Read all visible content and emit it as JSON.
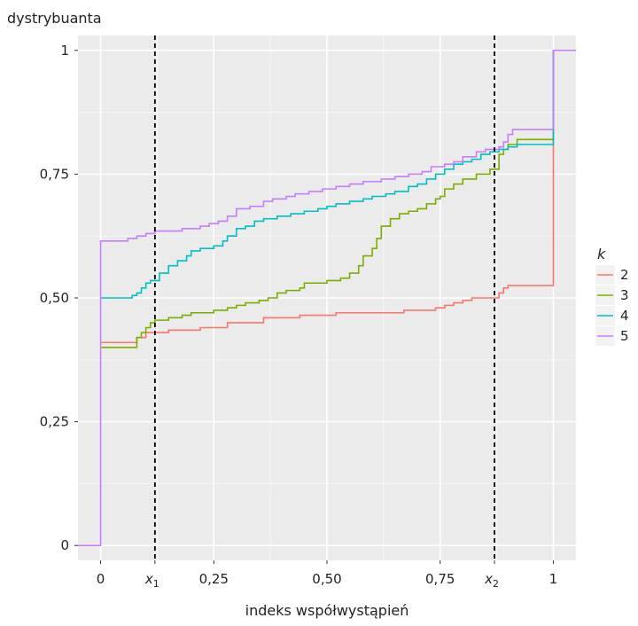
{
  "chart_data": {
    "type": "line",
    "step": true,
    "ylabel": "dystrybuanta",
    "xlabel": "indeks współwystąpień",
    "xlim": [
      -0.05,
      1.05
    ],
    "ylim": [
      -0.03,
      1.03
    ],
    "x_ticks": [
      {
        "value": 0,
        "label": "0"
      },
      {
        "value": 0.25,
        "label": "0,25"
      },
      {
        "value": 0.5,
        "label": "0,50"
      },
      {
        "value": 0.75,
        "label": "0,75"
      },
      {
        "value": 1,
        "label": "1"
      }
    ],
    "y_ticks": [
      {
        "value": 0,
        "label": "0"
      },
      {
        "value": 0.25,
        "label": "0,25"
      },
      {
        "value": 0.5,
        "label": "0,50"
      },
      {
        "value": 0.75,
        "label": "0,75"
      },
      {
        "value": 1,
        "label": "1"
      }
    ],
    "vlines": [
      {
        "x": 0.12,
        "label": "x",
        "subscript": "1"
      },
      {
        "x": 0.87,
        "label": "x",
        "subscript": "2"
      }
    ],
    "grid": true,
    "legend": {
      "title": "k",
      "position": "right"
    },
    "series": [
      {
        "name": "2",
        "color": "#F8766D",
        "points": [
          [
            0.0,
            0.41
          ],
          [
            0.07,
            0.41
          ],
          [
            0.08,
            0.42
          ],
          [
            0.09,
            0.42
          ],
          [
            0.1,
            0.43
          ],
          [
            0.14,
            0.43
          ],
          [
            0.15,
            0.435
          ],
          [
            0.2,
            0.435
          ],
          [
            0.22,
            0.44
          ],
          [
            0.27,
            0.44
          ],
          [
            0.28,
            0.45
          ],
          [
            0.35,
            0.45
          ],
          [
            0.36,
            0.46
          ],
          [
            0.42,
            0.46
          ],
          [
            0.44,
            0.465
          ],
          [
            0.5,
            0.465
          ],
          [
            0.52,
            0.47
          ],
          [
            0.65,
            0.47
          ],
          [
            0.67,
            0.475
          ],
          [
            0.73,
            0.475
          ],
          [
            0.74,
            0.48
          ],
          [
            0.76,
            0.485
          ],
          [
            0.78,
            0.49
          ],
          [
            0.8,
            0.495
          ],
          [
            0.82,
            0.5
          ],
          [
            0.87,
            0.5
          ],
          [
            0.88,
            0.51
          ],
          [
            0.89,
            0.52
          ],
          [
            0.9,
            0.525
          ],
          [
            1.0,
            0.525
          ],
          [
            1.0,
            1.0
          ]
        ]
      },
      {
        "name": "3",
        "color": "#7CAE00",
        "points": [
          [
            0.0,
            0.4
          ],
          [
            0.07,
            0.4
          ],
          [
            0.08,
            0.42
          ],
          [
            0.09,
            0.43
          ],
          [
            0.1,
            0.44
          ],
          [
            0.11,
            0.45
          ],
          [
            0.12,
            0.455
          ],
          [
            0.15,
            0.46
          ],
          [
            0.18,
            0.465
          ],
          [
            0.2,
            0.47
          ],
          [
            0.25,
            0.475
          ],
          [
            0.28,
            0.48
          ],
          [
            0.3,
            0.485
          ],
          [
            0.32,
            0.49
          ],
          [
            0.35,
            0.495
          ],
          [
            0.37,
            0.5
          ],
          [
            0.39,
            0.51
          ],
          [
            0.41,
            0.515
          ],
          [
            0.44,
            0.52
          ],
          [
            0.45,
            0.53
          ],
          [
            0.5,
            0.535
          ],
          [
            0.53,
            0.54
          ],
          [
            0.55,
            0.55
          ],
          [
            0.57,
            0.565
          ],
          [
            0.58,
            0.585
          ],
          [
            0.6,
            0.6
          ],
          [
            0.61,
            0.62
          ],
          [
            0.62,
            0.645
          ],
          [
            0.64,
            0.66
          ],
          [
            0.66,
            0.67
          ],
          [
            0.68,
            0.675
          ],
          [
            0.7,
            0.68
          ],
          [
            0.72,
            0.69
          ],
          [
            0.74,
            0.7
          ],
          [
            0.75,
            0.705
          ],
          [
            0.76,
            0.72
          ],
          [
            0.78,
            0.73
          ],
          [
            0.8,
            0.74
          ],
          [
            0.83,
            0.75
          ],
          [
            0.86,
            0.76
          ],
          [
            0.87,
            0.76
          ],
          [
            0.88,
            0.79
          ],
          [
            0.89,
            0.8
          ],
          [
            0.9,
            0.81
          ],
          [
            0.92,
            0.82
          ],
          [
            1.0,
            0.82
          ],
          [
            1.0,
            1.0
          ]
        ]
      },
      {
        "name": "4",
        "color": "#00BFC4",
        "points": [
          [
            0.0,
            0.5
          ],
          [
            0.06,
            0.5
          ],
          [
            0.07,
            0.505
          ],
          [
            0.08,
            0.51
          ],
          [
            0.09,
            0.52
          ],
          [
            0.1,
            0.53
          ],
          [
            0.11,
            0.535
          ],
          [
            0.13,
            0.55
          ],
          [
            0.15,
            0.565
          ],
          [
            0.17,
            0.575
          ],
          [
            0.19,
            0.585
          ],
          [
            0.2,
            0.595
          ],
          [
            0.22,
            0.6
          ],
          [
            0.25,
            0.605
          ],
          [
            0.27,
            0.615
          ],
          [
            0.28,
            0.625
          ],
          [
            0.3,
            0.64
          ],
          [
            0.32,
            0.645
          ],
          [
            0.34,
            0.655
          ],
          [
            0.36,
            0.66
          ],
          [
            0.39,
            0.665
          ],
          [
            0.42,
            0.67
          ],
          [
            0.45,
            0.675
          ],
          [
            0.48,
            0.68
          ],
          [
            0.5,
            0.685
          ],
          [
            0.52,
            0.69
          ],
          [
            0.55,
            0.695
          ],
          [
            0.58,
            0.7
          ],
          [
            0.6,
            0.705
          ],
          [
            0.63,
            0.71
          ],
          [
            0.65,
            0.715
          ],
          [
            0.68,
            0.725
          ],
          [
            0.7,
            0.73
          ],
          [
            0.72,
            0.74
          ],
          [
            0.74,
            0.75
          ],
          [
            0.76,
            0.76
          ],
          [
            0.78,
            0.77
          ],
          [
            0.8,
            0.775
          ],
          [
            0.82,
            0.78
          ],
          [
            0.84,
            0.79
          ],
          [
            0.86,
            0.795
          ],
          [
            0.88,
            0.8
          ],
          [
            0.9,
            0.805
          ],
          [
            0.92,
            0.81
          ],
          [
            1.0,
            0.81
          ],
          [
            1.0,
            1.0
          ]
        ]
      },
      {
        "name": "5",
        "color": "#C77CFF",
        "points": [
          [
            -0.05,
            0.0
          ],
          [
            0.0,
            0.0
          ],
          [
            0.0,
            0.615
          ],
          [
            0.05,
            0.615
          ],
          [
            0.06,
            0.62
          ],
          [
            0.08,
            0.625
          ],
          [
            0.1,
            0.63
          ],
          [
            0.12,
            0.635
          ],
          [
            0.15,
            0.635
          ],
          [
            0.18,
            0.64
          ],
          [
            0.22,
            0.645
          ],
          [
            0.24,
            0.65
          ],
          [
            0.26,
            0.655
          ],
          [
            0.28,
            0.665
          ],
          [
            0.3,
            0.68
          ],
          [
            0.33,
            0.685
          ],
          [
            0.36,
            0.695
          ],
          [
            0.38,
            0.7
          ],
          [
            0.41,
            0.705
          ],
          [
            0.43,
            0.71
          ],
          [
            0.46,
            0.715
          ],
          [
            0.49,
            0.72
          ],
          [
            0.52,
            0.725
          ],
          [
            0.55,
            0.73
          ],
          [
            0.58,
            0.735
          ],
          [
            0.62,
            0.74
          ],
          [
            0.65,
            0.745
          ],
          [
            0.68,
            0.75
          ],
          [
            0.71,
            0.755
          ],
          [
            0.73,
            0.765
          ],
          [
            0.76,
            0.77
          ],
          [
            0.78,
            0.775
          ],
          [
            0.8,
            0.785
          ],
          [
            0.83,
            0.795
          ],
          [
            0.85,
            0.8
          ],
          [
            0.88,
            0.805
          ],
          [
            0.89,
            0.815
          ],
          [
            0.9,
            0.83
          ],
          [
            0.91,
            0.84
          ],
          [
            1.0,
            0.84
          ],
          [
            1.0,
            1.0
          ],
          [
            1.05,
            1.0
          ]
        ]
      }
    ]
  }
}
